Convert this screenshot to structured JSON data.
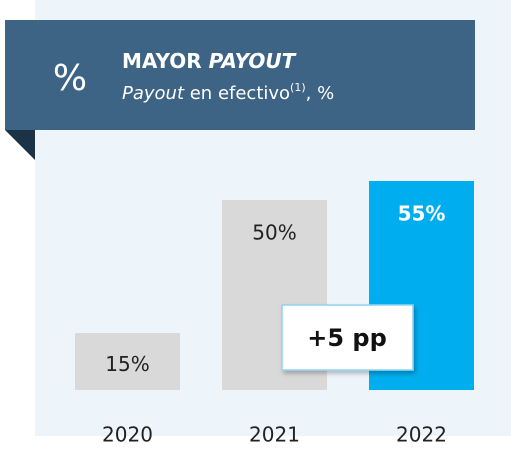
{
  "chart_data": {
    "type": "bar",
    "icon": "%",
    "title": "MAYOR",
    "title_emphasis": "PAYOUT",
    "subtitle_parts": [
      "Payout",
      " en efectivo",
      "(1)",
      ", %"
    ],
    "categories": [
      "2020",
      "2021",
      "2022"
    ],
    "values": [
      15,
      50,
      55
    ],
    "value_labels": [
      "15%",
      "50%",
      "55%"
    ],
    "colors": [
      "#d9d9d9",
      "#d9d9d9",
      "#00aeef"
    ],
    "annotation": "+5 pp"
  }
}
